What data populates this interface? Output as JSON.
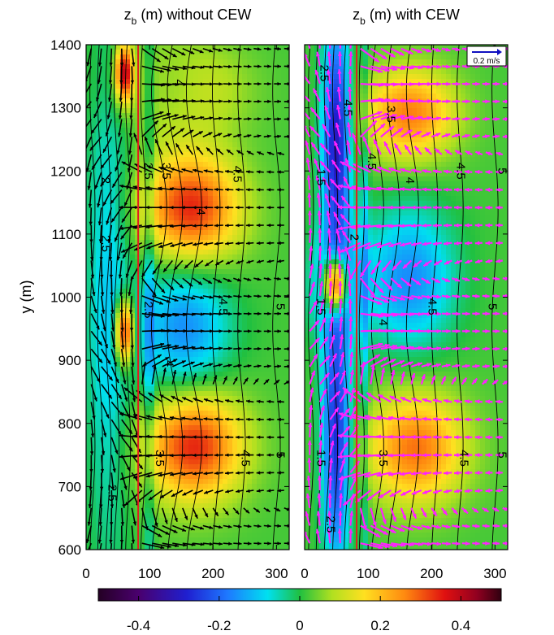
{
  "chart_data": [
    {
      "type": "heatmap",
      "title_main": "z",
      "title_sub": "b",
      "title_rest": " (m) without CEW",
      "xlabel": "",
      "ylabel": "y (m)",
      "xlim": [
        0,
        320
      ],
      "ylim": [
        600,
        1400
      ],
      "x_ticks": [
        0,
        100,
        200,
        300
      ],
      "y_ticks": [
        600,
        700,
        800,
        900,
        1000,
        1100,
        1200,
        1300,
        1400
      ],
      "vertical_line_x": 82,
      "vector_color": "#000000",
      "contour_labels": [
        {
          "text": "4",
          "x": 140,
          "y": 1340
        },
        {
          "text": "4.5",
          "x": 232,
          "y": 1195
        },
        {
          "text": "3.5",
          "x": 120,
          "y": 1200
        },
        {
          "text": "4",
          "x": 175,
          "y": 1135
        },
        {
          "text": "2.5",
          "x": 92,
          "y": 1200
        },
        {
          "text": "2",
          "x": 25,
          "y": 1185
        },
        {
          "text": "2.5",
          "x": 25,
          "y": 1085
        },
        {
          "text": "2.5",
          "x": 92,
          "y": 980
        },
        {
          "text": "4.5",
          "x": 210,
          "y": 985
        },
        {
          "text": "5",
          "x": 300,
          "y": 985
        },
        {
          "text": "4",
          "x": 125,
          "y": 895
        },
        {
          "text": "4.5",
          "x": 245,
          "y": 745
        },
        {
          "text": "3.5",
          "x": 110,
          "y": 745
        },
        {
          "text": "2.5",
          "x": 35,
          "y": 690
        },
        {
          "text": "5",
          "x": 300,
          "y": 750
        }
      ]
    },
    {
      "type": "heatmap",
      "title_main": "z",
      "title_sub": "b",
      "title_rest": " (m) with CEW",
      "xlabel": "",
      "ylabel": "",
      "xlim": [
        0,
        320
      ],
      "ylim": [
        600,
        1400
      ],
      "x_ticks": [
        0,
        100,
        200,
        300
      ],
      "y_ticks": [
        600,
        700,
        800,
        900,
        1000,
        1100,
        1200,
        1300,
        1400
      ],
      "vertical_line_x": 82,
      "vector_color": "#ff22ff",
      "reference_vector_label": "0.2 m/s",
      "contour_labels": [
        {
          "text": "2.5",
          "x": 25,
          "y": 1355
        },
        {
          "text": "4.5",
          "x": 62,
          "y": 1300
        },
        {
          "text": "3.5",
          "x": 130,
          "y": 1290
        },
        {
          "text": "4.5",
          "x": 240,
          "y": 1200
        },
        {
          "text": "5",
          "x": 305,
          "y": 1200
        },
        {
          "text": "4.5",
          "x": 100,
          "y": 1215
        },
        {
          "text": "4",
          "x": 160,
          "y": 1185
        },
        {
          "text": "1.5",
          "x": 20,
          "y": 1190
        },
        {
          "text": "2",
          "x": 72,
          "y": 1095
        },
        {
          "text": "4.5",
          "x": 195,
          "y": 985
        },
        {
          "text": "5",
          "x": 290,
          "y": 985
        },
        {
          "text": "4",
          "x": 118,
          "y": 960
        },
        {
          "text": "1.5",
          "x": 20,
          "y": 985
        },
        {
          "text": "1.5",
          "x": 20,
          "y": 745
        },
        {
          "text": "3.5",
          "x": 118,
          "y": 745
        },
        {
          "text": "4.5",
          "x": 245,
          "y": 745
        },
        {
          "text": "5",
          "x": 305,
          "y": 750
        },
        {
          "text": "2.5",
          "x": 35,
          "y": 640
        }
      ]
    }
  ],
  "colorbar": {
    "min": -0.5,
    "max": 0.5,
    "ticks": [
      "-0.4",
      "-0.2",
      "0",
      "0.2",
      "0.4"
    ],
    "tick_values": [
      -0.4,
      -0.2,
      0,
      0.2,
      0.4
    ],
    "colormap": "jet-like (dark purple to blue, cyan, green, yellow, red, dark red)"
  }
}
